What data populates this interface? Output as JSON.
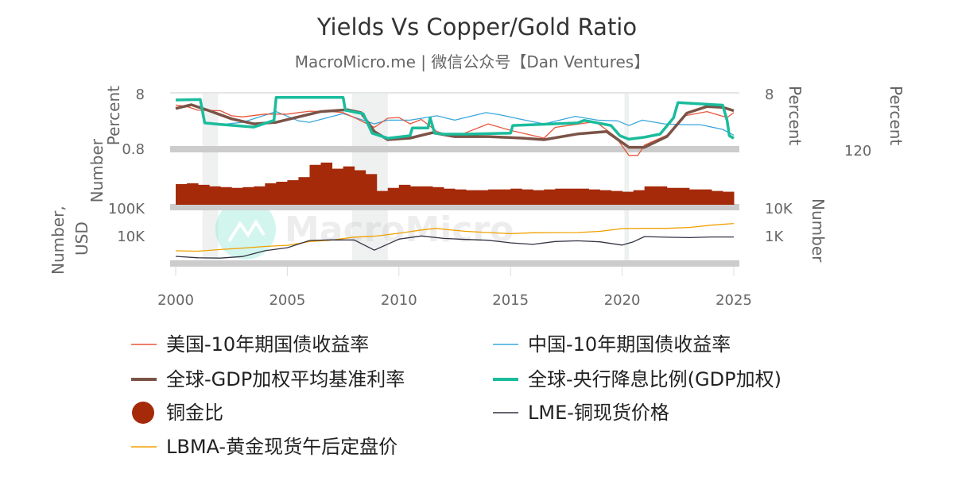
{
  "chart_data": {
    "type": "line",
    "title": "Yields Vs Copper/Gold Ratio",
    "subtitle": "MacroMicro.me | 微信公众号【Dan Ventures】",
    "watermark": "MacroMicro",
    "grid": false,
    "legend_placement": "bottom",
    "x_ticks": [
      "2000",
      "2005",
      "2010",
      "2015",
      "2020",
      "2025"
    ],
    "xlim": [
      2000,
      2025
    ],
    "recession_shading": [
      [
        2001.2,
        2001.9
      ],
      [
        2007.9,
        2009.5
      ],
      [
        2020.1,
        2020.3
      ]
    ],
    "panels": [
      {
        "left_axis_label": "Percent",
        "left_ticks": [
          "8",
          "0.8"
        ],
        "ylim": [
          0.8,
          8
        ],
        "scale": "log",
        "right_axis_label": "Percent",
        "right_ticks": [
          "8"
        ],
        "right2_axis_label": "Percent",
        "right2_ticks": [
          "120"
        ],
        "right2_ylim": [
          0,
          120
        ]
      },
      {
        "left_axis_label": "Number",
        "ylim": [
          0,
          0.006
        ]
      },
      {
        "left_axis_label": "Number, USD",
        "left_ticks": [
          "100K",
          "10K"
        ],
        "right_axis_label": "Number",
        "right_ticks": [
          "10K",
          "1K"
        ],
        "scale": "log"
      }
    ],
    "series": [
      {
        "name": "美国-10年期国债收益率",
        "panel": 0,
        "color": "#e8553a",
        "width": 1.3,
        "x": [
          2000,
          2000.5,
          2001,
          2002,
          2002.5,
          2003,
          2004,
          2005,
          2006,
          2007,
          2007.5,
          2008,
          2008.9,
          2009.5,
          2010,
          2010.5,
          2011,
          2011.7,
          2012.5,
          2013,
          2014,
          2015,
          2016.5,
          2017,
          2018.8,
          2019.7,
          2020.3,
          2020.7,
          2021,
          2022,
          2022.8,
          2023.8,
          2024.7,
          2025
        ],
        "y": [
          6.4,
          6.0,
          5.1,
          5.0,
          4.0,
          3.8,
          4.3,
          4.3,
          4.9,
          4.8,
          4.6,
          3.7,
          2.4,
          3.6,
          3.7,
          2.8,
          3.4,
          2.0,
          1.6,
          1.9,
          2.8,
          2.1,
          1.5,
          2.4,
          3.1,
          1.6,
          0.7,
          0.7,
          1.1,
          1.7,
          4.0,
          4.8,
          3.7,
          4.6
        ]
      },
      {
        "name": "中国-10年期国债收益率",
        "panel": 0,
        "color": "#3aa7dd",
        "width": 1.3,
        "x": [
          2002.3,
          2003,
          2004.5,
          2005.5,
          2006,
          2007.5,
          2008.9,
          2009.5,
          2010.5,
          2011.7,
          2012.5,
          2013.9,
          2014.5,
          2015.5,
          2016.5,
          2017.9,
          2018.9,
          2019.8,
          2020.3,
          2020.9,
          2021.9,
          2022.8,
          2023.5,
          2024.5,
          2025
        ],
        "y": [
          2.8,
          3.0,
          4.8,
          3.2,
          3.0,
          4.4,
          2.8,
          3.3,
          3.3,
          4.0,
          3.3,
          4.6,
          4.2,
          3.4,
          2.8,
          3.9,
          3.3,
          3.2,
          2.6,
          3.3,
          2.8,
          2.7,
          2.7,
          2.2,
          1.7
        ]
      },
      {
        "name": "全球-GDP加权平均基准利率",
        "panel": 0,
        "color": "#7b5346",
        "width": 3.5,
        "x": [
          2000,
          2000.7,
          2001.5,
          2002.5,
          2003.5,
          2004.5,
          2005.5,
          2006.5,
          2007.7,
          2008.3,
          2008.9,
          2009.5,
          2010.5,
          2011.5,
          2012.5,
          2014,
          2015.5,
          2016.5,
          2018,
          2019.3,
          2020.3,
          2021,
          2022,
          2022.9,
          2023.8,
          2024.5,
          2025
        ],
        "y": [
          5.5,
          6.5,
          5.0,
          3.5,
          2.8,
          3.0,
          3.8,
          4.8,
          5.2,
          4.6,
          2.0,
          1.4,
          1.5,
          1.9,
          1.6,
          1.6,
          1.5,
          1.4,
          1.8,
          2.0,
          1.0,
          1.0,
          1.6,
          4.5,
          6.0,
          5.8,
          5.0
        ]
      },
      {
        "name": "全球-央行降息比例(GDP加权)",
        "panel": 0,
        "axis": "right2",
        "color": "#1abc9c",
        "width": 3.5,
        "x": [
          2000,
          2001.1,
          2001.3,
          2002,
          2003.5,
          2004.4,
          2004.5,
          2007.5,
          2007.6,
          2008.4,
          2008.8,
          2009.5,
          2010.5,
          2010.6,
          2011.3,
          2011.4,
          2011.6,
          2012,
          2013,
          2015,
          2015.1,
          2018,
          2018.3,
          2019.5,
          2019.9,
          2020.3,
          2021,
          2021.7,
          2022.3,
          2022.5,
          2024.5,
          2024.7,
          2024.8,
          2025
        ],
        "y": [
          95,
          96,
          50,
          47,
          42,
          55,
          100,
          100,
          75,
          68,
          30,
          20,
          25,
          40,
          40,
          60,
          30,
          28,
          28,
          30,
          45,
          50,
          55,
          45,
          25,
          18,
          22,
          28,
          60,
          90,
          85,
          55,
          25,
          20
        ]
      },
      {
        "name": "铜金比",
        "panel": 1,
        "type": "bar",
        "color": "#a52a0a",
        "x": [
          2000,
          2000.5,
          2001,
          2001.5,
          2002,
          2002.5,
          2003,
          2003.5,
          2004,
          2004.5,
          2005,
          2005.5,
          2006,
          2006.5,
          2007,
          2007.5,
          2008,
          2008.5,
          2009,
          2009.5,
          2010,
          2010.5,
          2011,
          2011.5,
          2012,
          2012.5,
          2013,
          2013.5,
          2014,
          2014.5,
          2015,
          2015.5,
          2016,
          2016.5,
          2017,
          2017.5,
          2018,
          2018.5,
          2019,
          2019.5,
          2020,
          2020.5,
          2021,
          2021.5,
          2022,
          2022.5,
          2023,
          2023.5,
          2024,
          2024.5
        ],
        "y": [
          0.0027,
          0.0028,
          0.0026,
          0.0024,
          0.0023,
          0.0022,
          0.0023,
          0.0024,
          0.0028,
          0.003,
          0.0032,
          0.0036,
          0.0052,
          0.0055,
          0.0047,
          0.005,
          0.0045,
          0.004,
          0.0018,
          0.0022,
          0.0026,
          0.0024,
          0.0024,
          0.0023,
          0.0021,
          0.002,
          0.0019,
          0.0019,
          0.002,
          0.002,
          0.0021,
          0.002,
          0.0019,
          0.002,
          0.0021,
          0.0021,
          0.0021,
          0.002,
          0.0019,
          0.0018,
          0.0017,
          0.0019,
          0.0024,
          0.0024,
          0.0022,
          0.0022,
          0.002,
          0.002,
          0.0018,
          0.0017
        ]
      },
      {
        "name": "LME-铜现货价格",
        "panel": 2,
        "axis": "right",
        "color": "#333344",
        "width": 1.3,
        "ylim": [
          1135,
          100000
        ],
        "x": [
          2000,
          2001,
          2002,
          2003,
          2004,
          2005,
          2006,
          2007,
          2008,
          2008.9,
          2010,
          2011,
          2012,
          2013,
          2014,
          2015,
          2016,
          2017,
          2018,
          2019,
          2020,
          2020.5,
          2021,
          2022,
          2023,
          2024,
          2025
        ],
        "y": [
          1800,
          1600,
          1560,
          1780,
          2870,
          3700,
          6700,
          7100,
          7000,
          3000,
          7500,
          9800,
          7950,
          7300,
          6860,
          5500,
          4860,
          6170,
          6530,
          6000,
          4600,
          6000,
          9300,
          8800,
          8500,
          9000,
          9000
        ]
      },
      {
        "name": "LBMA-黄金现货午后定盘价",
        "panel": 2,
        "axis": "left",
        "color": "#f0a000",
        "width": 1.3,
        "ylim": [
          111,
          9800
        ],
        "x": [
          2000,
          2001,
          2002,
          2003,
          2004,
          2005,
          2006,
          2007,
          2008,
          2009,
          2010,
          2011,
          2011.7,
          2012,
          2013,
          2014,
          2015,
          2016,
          2017,
          2018,
          2019,
          2020,
          2021,
          2022,
          2023,
          2024,
          2025
        ],
        "y": [
          280,
          270,
          310,
          350,
          400,
          440,
          600,
          680,
          870,
          950,
          1200,
          1570,
          1800,
          1660,
          1400,
          1270,
          1160,
          1250,
          1260,
          1270,
          1400,
          1770,
          1800,
          1800,
          1940,
          2350,
          2700
        ]
      }
    ]
  }
}
